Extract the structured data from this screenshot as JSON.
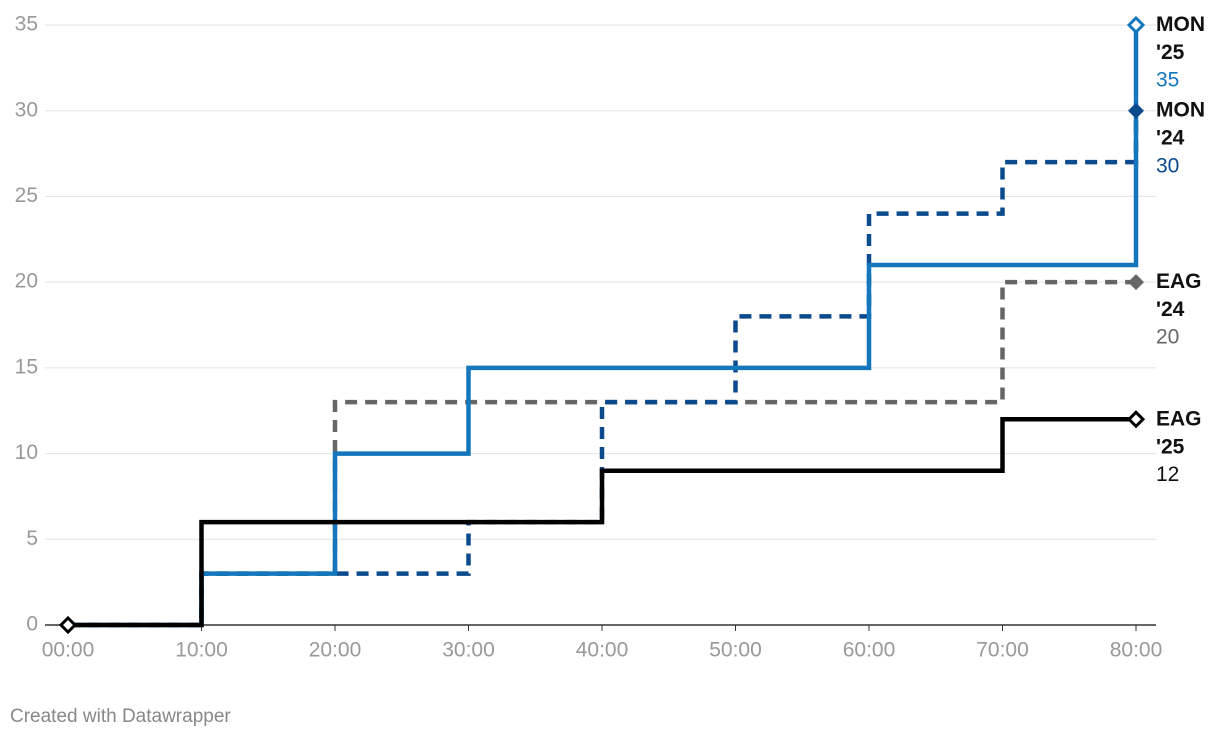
{
  "chart_data": {
    "type": "step",
    "x": [
      0,
      10,
      20,
      30,
      40,
      50,
      60,
      70,
      80
    ],
    "xlim": [
      0,
      80
    ],
    "xticks": [
      {
        "value": 0,
        "label": "00:00"
      },
      {
        "value": 10,
        "label": "10:00"
      },
      {
        "value": 20,
        "label": "20:00"
      },
      {
        "value": 30,
        "label": "30:00"
      },
      {
        "value": 40,
        "label": "40:00"
      },
      {
        "value": 50,
        "label": "50:00"
      },
      {
        "value": 60,
        "label": "60:00"
      },
      {
        "value": 70,
        "label": "70:00"
      },
      {
        "value": 80,
        "label": "80:00"
      }
    ],
    "ylim": [
      0,
      35
    ],
    "yticks": [
      0,
      5,
      10,
      15,
      20,
      25,
      30,
      35
    ],
    "grid": true,
    "series": [
      {
        "name": "EAG '24",
        "color": "#666666",
        "style": "dashed",
        "marker": "filled",
        "values": [
          0,
          3,
          13,
          13,
          13,
          13,
          13,
          20,
          20
        ]
      },
      {
        "name": "MON '24",
        "color": "#0b4a8c",
        "style": "dashed",
        "marker": "filled",
        "values": [
          0,
          3,
          3,
          6,
          13,
          18,
          24,
          27,
          30
        ]
      },
      {
        "name": "MON '25",
        "color": "#1477bb",
        "style": "solid",
        "marker": "hollow",
        "values": [
          0,
          3,
          10,
          15,
          15,
          15,
          21,
          21,
          35
        ]
      },
      {
        "name": "EAG '25",
        "color": "#000000",
        "style": "solid",
        "marker": "hollow",
        "values": [
          0,
          6,
          6,
          6,
          9,
          9,
          9,
          12,
          12
        ]
      }
    ],
    "footer": "Created with Datawrapper"
  }
}
